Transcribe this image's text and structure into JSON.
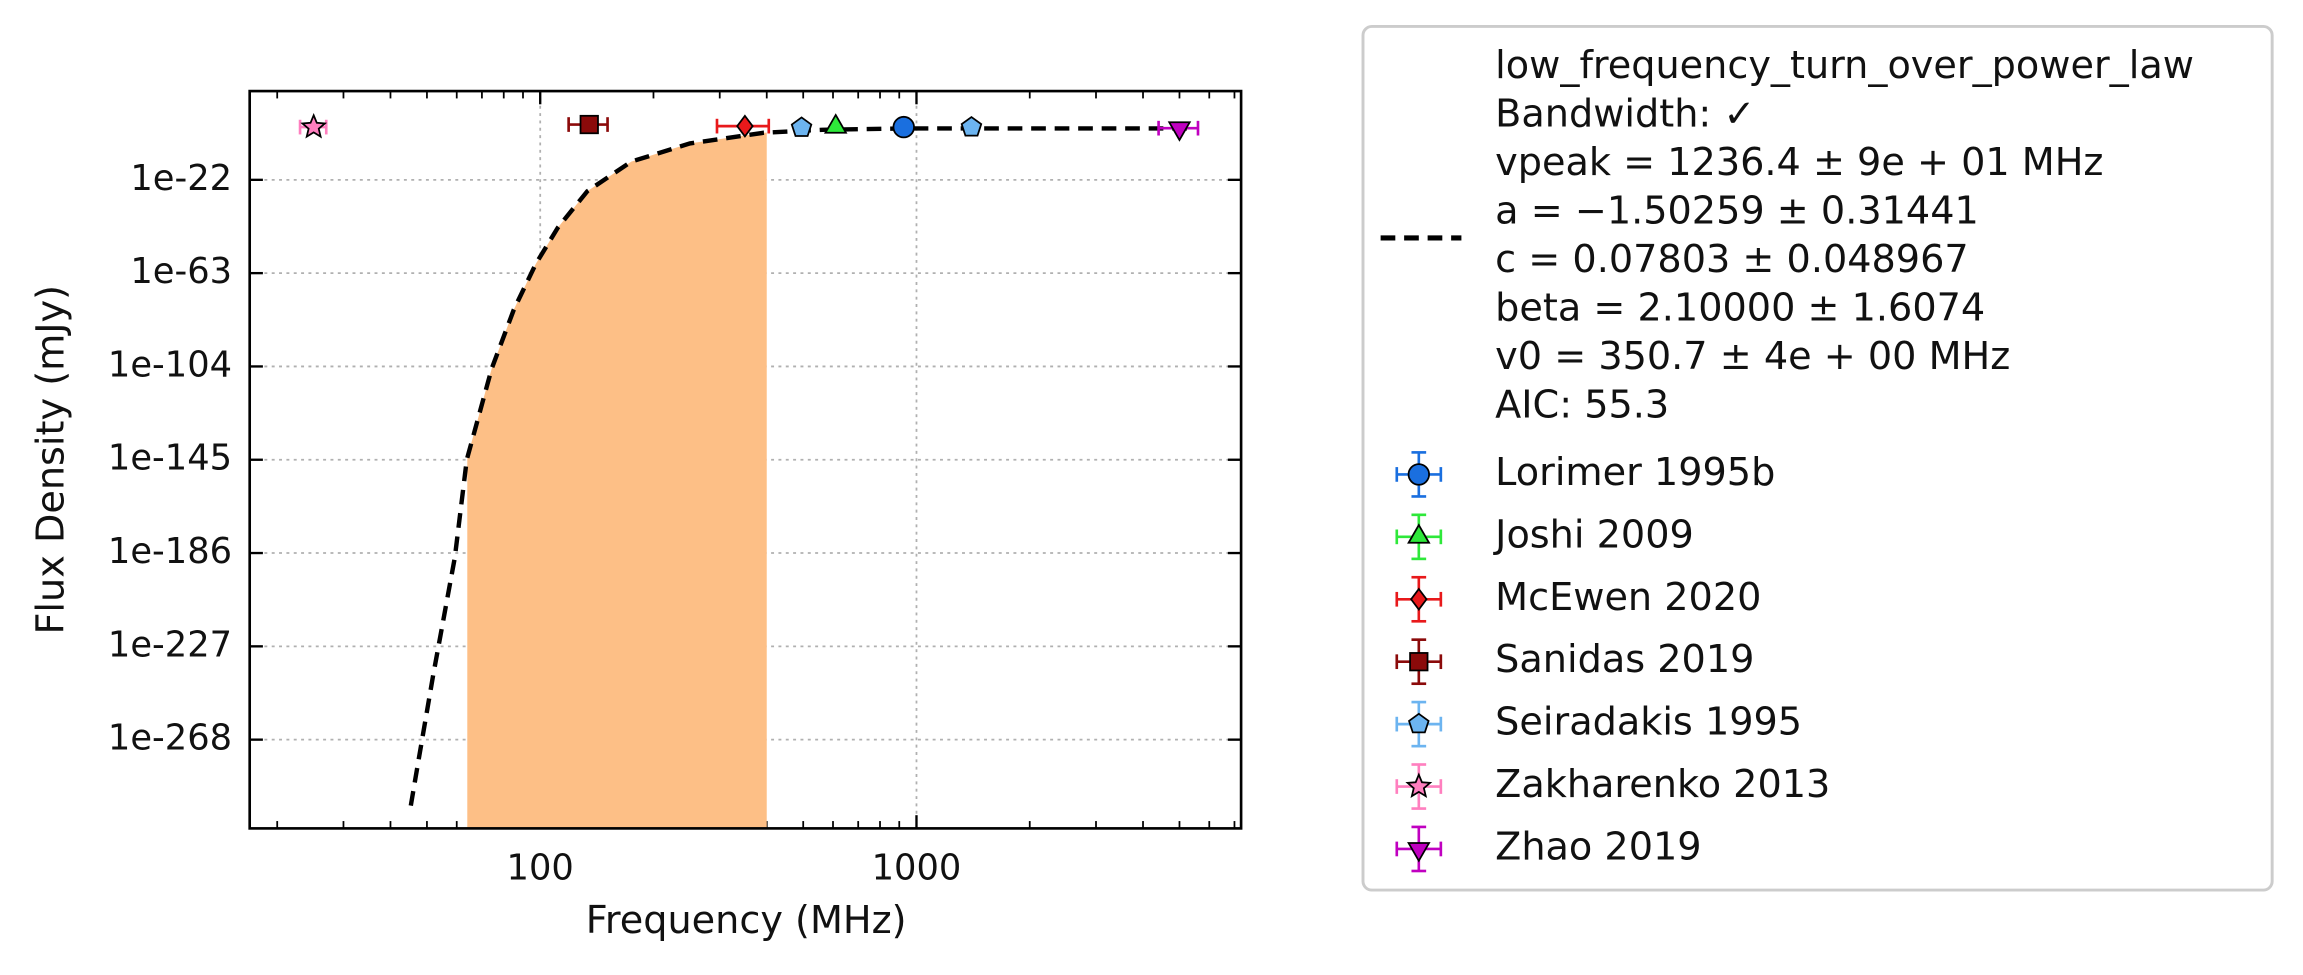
{
  "chart_data": {
    "type": "scatter",
    "xlabel": "Frequency (MHz)",
    "ylabel": "Flux Density (mJy)",
    "xscale": "log",
    "yscale": "log",
    "xlim": [
      16.9,
      7290
    ],
    "ylim": [
      1e-307,
      1e+17
    ],
    "xticks": [
      100,
      1000
    ],
    "yticks": [
      1e-22,
      1e-63,
      1e-104,
      1e-145,
      1e-186,
      1e-227,
      1e-268
    ],
    "grid": true,
    "fit": {
      "color": "#000000",
      "style": "dashed",
      "legend_lines": [
        "low_frequency_turn_over_power_law",
        "Bandwidth: ✓",
        "vpeak = 1236.4 ± 9e + 01 MHz",
        "a = −1.50259 ± 0.31441",
        "c = 0.07803 ± 0.048967",
        "beta = 2.10000 ± 1.6074",
        "v0 = 350.7 ± 4e + 00 MHz",
        "AIC: 55.3"
      ],
      "x": [
        45.3,
        46.6,
        51.9,
        59.3,
        63.8,
        74.3,
        85.1,
        97.3,
        111.4,
        133.4,
        174.6,
        250,
        393,
        562,
        964,
        1982,
        5330
      ],
      "values": [
        1e-297,
        1e-285,
        1e-240,
        1e-188,
        1e-145,
        1e-105,
        1e-79,
        1e-59,
        1e-43,
        1e-27,
        1e-14,
        1e-06,
        0.05,
        1,
        4,
        4,
        4
      ]
    },
    "shade": {
      "x": [
        64,
        400
      ],
      "color": "#fdbf86"
    },
    "series": [
      {
        "name": "Lorimer 1995b",
        "color": "#1a6fdf",
        "marker": "circle",
        "x": [
          925
        ],
        "values": [
          15
        ],
        "xerr": [
          0
        ]
      },
      {
        "name": "Joshi 2009",
        "color": "#2ee83a",
        "marker": "triangle-up",
        "x": [
          610
        ],
        "values": [
          20
        ],
        "xerr": [
          0
        ]
      },
      {
        "name": "McEwen 2020",
        "color": "#e8191b",
        "marker": "diamond",
        "x": [
          350
        ],
        "values": [
          40
        ],
        "xerr": [
          55
        ]
      },
      {
        "name": "Sanidas 2019",
        "color": "#8b0a0a",
        "marker": "square",
        "x": [
          135
        ],
        "values": [
          200
        ],
        "xerr": [
          16
        ]
      },
      {
        "name": "Seiradakis 1995",
        "color": "#6cb4f0",
        "marker": "pentagon",
        "x": [
          495,
          1400
        ],
        "values": [
          8,
          12
        ],
        "xerr": [
          0,
          0
        ]
      },
      {
        "name": "Zakharenko 2013",
        "color": "#ff7fbf",
        "marker": "star",
        "x": [
          25
        ],
        "values": [
          15
        ],
        "xerr": [
          2
        ]
      },
      {
        "name": "Zhao 2019",
        "color": "#c000c0",
        "marker": "triangle-down",
        "x": [
          5000
        ],
        "values": [
          5
        ],
        "xerr": [
          600
        ]
      }
    ]
  }
}
